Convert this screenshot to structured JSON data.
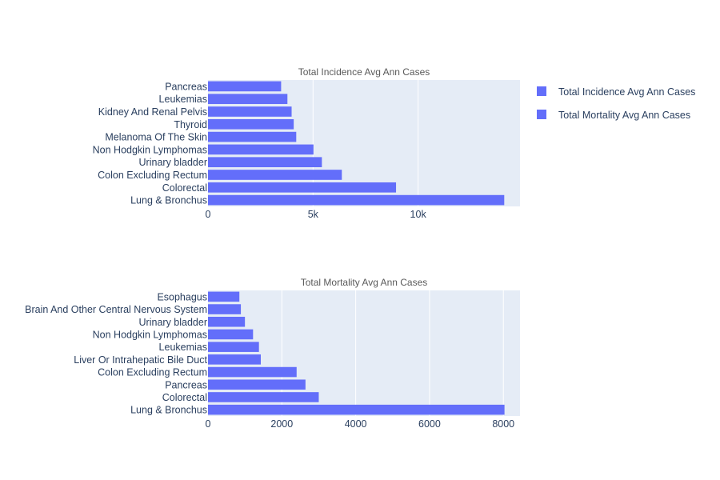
{
  "colors": {
    "bar": "#636efa",
    "plot_bg": "#e5ecf6",
    "grid": "#ffffff",
    "text": "#2a3f5f"
  },
  "legend": {
    "placement": "top-right",
    "items": [
      {
        "label": "Total Incidence Avg Ann Cases",
        "color": "#636efa"
      },
      {
        "label": "Total Mortality Avg Ann Cases",
        "color": "#636efa"
      }
    ]
  },
  "chart_data": [
    {
      "type": "bar",
      "orientation": "horizontal",
      "title": "Total Incidence Avg Ann Cases",
      "series_name": "Total Incidence Avg Ann Cases",
      "categories": [
        "Pancreas",
        "Leukemias",
        "Kidney And Renal Pelvis",
        "Thyroid",
        "Melanoma Of The Skin",
        "Non Hodgkin Lymphomas",
        "Urinary bladder",
        "Colon Excluding Rectum",
        "Colorectal",
        "Lung & Bronchus"
      ],
      "values": [
        3480,
        3780,
        3980,
        4080,
        4200,
        5020,
        5420,
        6370,
        8950,
        14100
      ],
      "xlim": [
        0,
        14850
      ],
      "xticks": [
        0,
        5000,
        10000
      ],
      "xtick_labels": [
        "0",
        "5k",
        "10k"
      ],
      "grid": true
    },
    {
      "type": "bar",
      "orientation": "horizontal",
      "title": "Total Mortality Avg Ann Cases",
      "series_name": "Total Mortality Avg Ann Cases",
      "categories": [
        "Esophagus",
        "Brain And Other Central Nervous System",
        "Urinary bladder",
        "Non Hodgkin Lymphomas",
        "Leukemias",
        "Liver Or Intrahepatic Bile Duct",
        "Colon Excluding Rectum",
        "Pancreas",
        "Colorectal",
        "Lung & Bronchus"
      ],
      "values": [
        850,
        890,
        1000,
        1220,
        1380,
        1430,
        2400,
        2640,
        3000,
        8030
      ],
      "xlim": [
        0,
        8450
      ],
      "xticks": [
        0,
        2000,
        4000,
        6000,
        8000
      ],
      "xtick_labels": [
        "0",
        "2000",
        "4000",
        "6000",
        "8000"
      ],
      "grid": true
    }
  ]
}
